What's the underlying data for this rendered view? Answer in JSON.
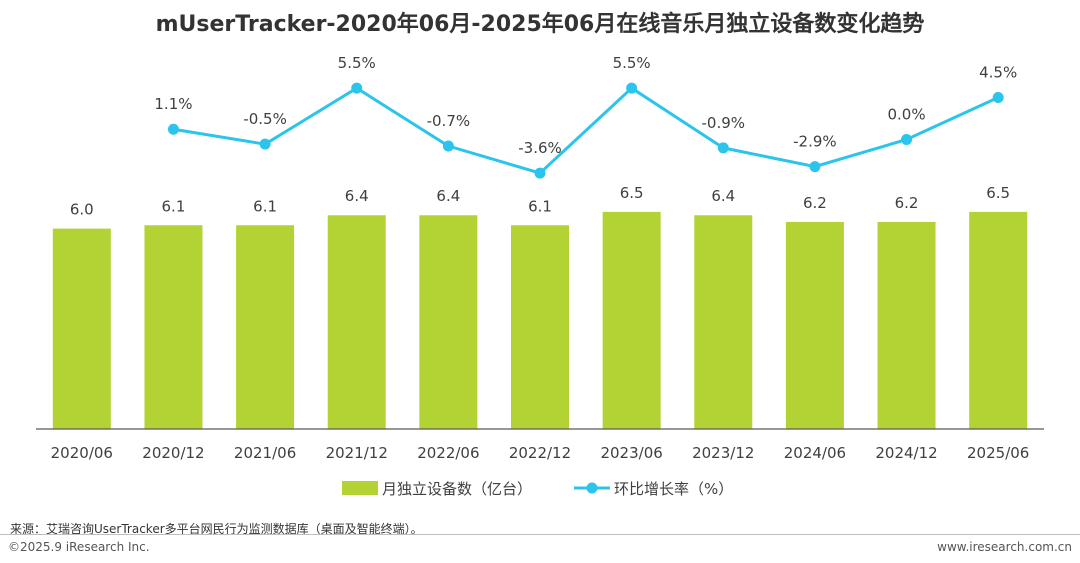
{
  "title": "mUserTracker-2020年06月-2025年06月在线音乐月独立设备数变化趋势",
  "colors": {
    "bar": "#B3D334",
    "line": "#2BC4EC",
    "axis": "#595959",
    "label": "#404040"
  },
  "chart_data": {
    "type": "bar",
    "categories": [
      "2020/06",
      "2020/12",
      "2021/06",
      "2021/12",
      "2022/06",
      "2022/12",
      "2023/06",
      "2023/12",
      "2024/06",
      "2024/12",
      "2025/06"
    ],
    "series": [
      {
        "name": "月独立设备数（亿台）",
        "type": "bar",
        "values": [
          6.0,
          6.1,
          6.1,
          6.4,
          6.4,
          6.1,
          6.5,
          6.4,
          6.2,
          6.2,
          6.5
        ],
        "labels": [
          "6.0",
          "6.1",
          "6.1",
          "6.4",
          "6.4",
          "6.1",
          "6.5",
          "6.4",
          "6.2",
          "6.2",
          "6.5"
        ]
      },
      {
        "name": "环比增长率（%）",
        "type": "line",
        "values": [
          null,
          1.1,
          -0.5,
          5.5,
          -0.7,
          -3.6,
          5.5,
          -0.9,
          -2.9,
          0.0,
          4.5
        ],
        "labels": [
          "",
          "1.1%",
          "-0.5%",
          "5.5%",
          "-0.7%",
          "-3.6%",
          "5.5%",
          "-0.9%",
          "-2.9%",
          "0.0%",
          "4.5%"
        ]
      }
    ],
    "legend_position": "bottom"
  },
  "footer": {
    "source": "来源：艾瑞咨询UserTracker多平台网民行为监测数据库（桌面及智能终端）。",
    "copyright": "©2025.9 iResearch Inc.",
    "website": "www.iresearch.com.cn"
  }
}
